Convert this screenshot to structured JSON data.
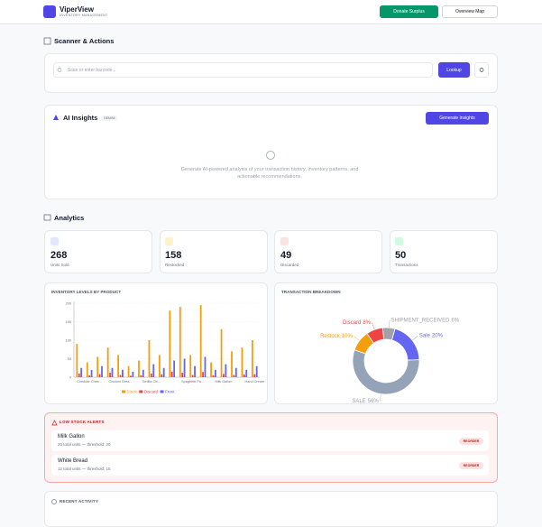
{
  "header": {
    "title": "ViperView",
    "subtitle": "INVENTORY MANAGEMENT",
    "buttons": [
      "Donate Surplus",
      "Overview Map"
    ]
  },
  "scanner": {
    "heading": "Scanner & Actions",
    "placeholder": "Scan or enter barcode...",
    "button": "Lookup"
  },
  "ai_insights": {
    "title": "AI Insights",
    "badge": "GEMINI",
    "button": "Generate Insights",
    "message": "Generate AI-powered analysis of your transaction history, inventory patterns, and actionable recommendations."
  },
  "analytics": {
    "heading": "Analytics",
    "stats": [
      {
        "value": 268,
        "label": "Units Sold"
      },
      {
        "value": 158,
        "label": "Restocked"
      },
      {
        "value": 49,
        "label": "Discarded"
      },
      {
        "value": 50,
        "label": "Transactions"
      }
    ]
  },
  "chart_data": [
    {
      "type": "bar",
      "title": "INVENTORY LEVELS BY PRODUCT",
      "categories": [
        null,
        "Cheddar Chee...",
        null,
        null,
        "Chicken Brea...",
        null,
        null,
        "Tortilla Chi...",
        null,
        null,
        null,
        "Spaghetti Pa...",
        null,
        null,
        "Milk Gallon",
        null,
        null,
        "Hand Cream"
      ],
      "series": [
        {
          "name": "Stock",
          "color": "#f59e0b",
          "values": [
            90,
            40,
            55,
            80,
            60,
            30,
            45,
            100,
            60,
            180,
            190,
            60,
            195,
            40,
            130,
            70,
            80,
            100
          ]
        },
        {
          "name": "Discard",
          "color": "#ef4444",
          "values": [
            10,
            5,
            8,
            12,
            6,
            4,
            5,
            10,
            8,
            15,
            12,
            6,
            14,
            5,
            9,
            6,
            7,
            8
          ]
        },
        {
          "name": "Front",
          "color": "#6366f1",
          "values": [
            25,
            20,
            30,
            25,
            20,
            15,
            20,
            35,
            25,
            45,
            50,
            30,
            55,
            20,
            35,
            25,
            20,
            30
          ]
        }
      ],
      "ylim": [
        0,
        200
      ],
      "yticks": [
        0,
        50,
        100,
        150,
        200
      ],
      "grid": true
    },
    {
      "type": "pie",
      "title": "TRANSACTION BREAKDOWN",
      "categories": [
        "SHIPMENT_RECEIVED",
        "Sale",
        "SALE",
        "Restock",
        "Discard"
      ],
      "values": [
        6,
        20,
        56,
        10,
        8
      ],
      "value_labels": [
        "6%",
        "20%",
        "56%",
        "10%",
        "8%"
      ],
      "colors": [
        "#a1a1aa",
        "#6366f1",
        "#94a3b8",
        "#f59e0b",
        "#ef4444"
      ],
      "donut": true
    }
  ],
  "low_stock": {
    "title": "LOW STOCK ALERTS",
    "items": [
      {
        "name": "Milk Gallon",
        "detail": "20 total units — threshold: 20",
        "action": "REORDER"
      },
      {
        "name": "White Bread",
        "detail": "12 total units — threshold: 15",
        "action": "REORDER"
      }
    ]
  },
  "recent_activity": {
    "title": "RECENT ACTIVITY"
  }
}
